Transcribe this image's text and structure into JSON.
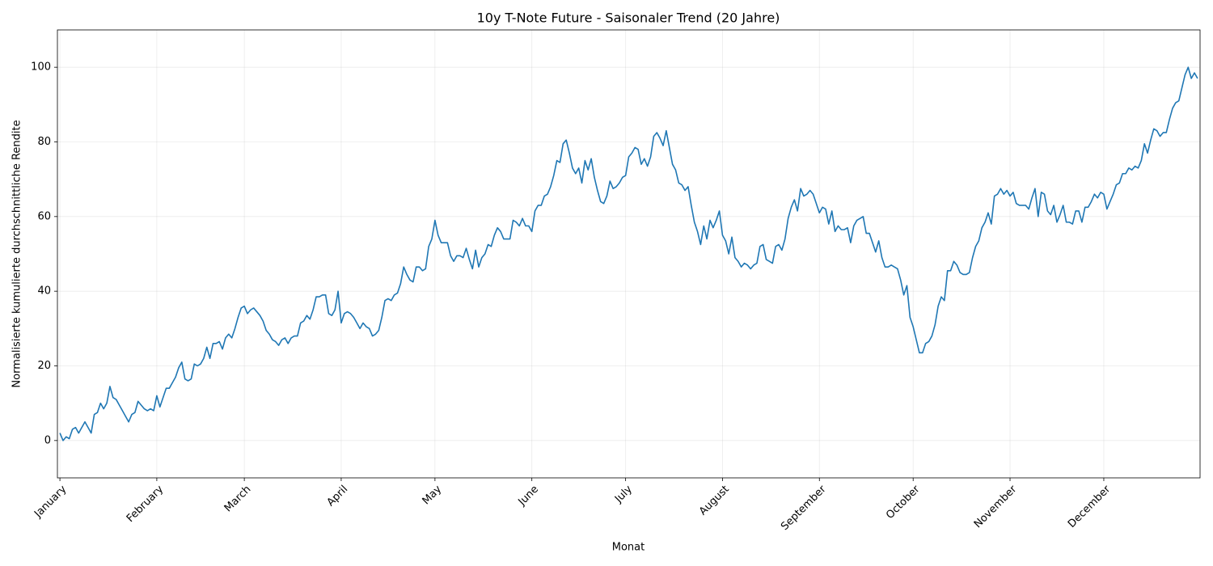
{
  "chart_data": {
    "type": "line",
    "title": "10y T-Note Future - Saisonaler Trend (20 Jahre)",
    "x_label": "Monat",
    "y_label": "Normalisierte kumulierte durchschnittliche Rendite",
    "color": "#1f77b4",
    "grid": true,
    "xlim": [
      0.2,
      365.8
    ],
    "ylim": [
      -10,
      110
    ],
    "yticks": [
      0,
      20,
      40,
      60,
      80,
      100
    ],
    "xticks": [
      {
        "value": 1,
        "label": "January"
      },
      {
        "value": 32,
        "label": "February"
      },
      {
        "value": 60,
        "label": "March"
      },
      {
        "value": 91,
        "label": "April"
      },
      {
        "value": 121,
        "label": "May"
      },
      {
        "value": 152,
        "label": "June"
      },
      {
        "value": 182,
        "label": "July"
      },
      {
        "value": 213,
        "label": "August"
      },
      {
        "value": 244,
        "label": "September"
      },
      {
        "value": 274,
        "label": "October"
      },
      {
        "value": 305,
        "label": "November"
      },
      {
        "value": 335,
        "label": "December"
      }
    ],
    "x": [
      1,
      2,
      3,
      4,
      5,
      6,
      7,
      8,
      9,
      10,
      11,
      12,
      13,
      14,
      15,
      16,
      17,
      18,
      19,
      20,
      21,
      22,
      23,
      24,
      25,
      26,
      27,
      28,
      29,
      30,
      31,
      32,
      33,
      34,
      35,
      36,
      37,
      38,
      39,
      40,
      41,
      42,
      43,
      44,
      45,
      46,
      47,
      48,
      49,
      50,
      51,
      52,
      53,
      54,
      55,
      56,
      57,
      58,
      59,
      60,
      61,
      62,
      63,
      64,
      65,
      66,
      67,
      68,
      69,
      70,
      71,
      72,
      73,
      74,
      75,
      76,
      77,
      78,
      79,
      80,
      81,
      82,
      83,
      84,
      85,
      86,
      87,
      88,
      89,
      90,
      91,
      92,
      93,
      94,
      95,
      96,
      97,
      98,
      99,
      100,
      101,
      102,
      103,
      104,
      105,
      106,
      107,
      108,
      109,
      110,
      111,
      112,
      113,
      114,
      115,
      116,
      117,
      118,
      119,
      120,
      121,
      122,
      123,
      124,
      125,
      126,
      127,
      128,
      129,
      130,
      131,
      132,
      133,
      134,
      135,
      136,
      137,
      138,
      139,
      140,
      141,
      142,
      143,
      144,
      145,
      146,
      147,
      148,
      149,
      150,
      151,
      152,
      153,
      154,
      155,
      156,
      157,
      158,
      159,
      160,
      161,
      162,
      163,
      164,
      165,
      166,
      167,
      168,
      169,
      170,
      171,
      172,
      173,
      174,
      175,
      176,
      177,
      178,
      179,
      180,
      181,
      182,
      183,
      184,
      185,
      186,
      187,
      188,
      189,
      190,
      191,
      192,
      193,
      194,
      195,
      196,
      197,
      198,
      199,
      200,
      201,
      202,
      203,
      204,
      205,
      206,
      207,
      208,
      209,
      210,
      211,
      212,
      213,
      214,
      215,
      216,
      217,
      218,
      219,
      220,
      221,
      222,
      223,
      224,
      225,
      226,
      227,
      228,
      229,
      230,
      231,
      232,
      233,
      234,
      235,
      236,
      237,
      238,
      239,
      240,
      241,
      242,
      243,
      244,
      245,
      246,
      247,
      248,
      249,
      250,
      251,
      252,
      253,
      254,
      255,
      256,
      257,
      258,
      259,
      260,
      261,
      262,
      263,
      264,
      265,
      266,
      267,
      268,
      269,
      270,
      271,
      272,
      273,
      274,
      275,
      276,
      277,
      278,
      279,
      280,
      281,
      282,
      283,
      284,
      285,
      286,
      287,
      288,
      289,
      290,
      291,
      292,
      293,
      294,
      295,
      296,
      297,
      298,
      299,
      300,
      301,
      302,
      303,
      304,
      305,
      306,
      307,
      308,
      309,
      310,
      311,
      312,
      313,
      314,
      315,
      316,
      317,
      318,
      319,
      320,
      321,
      322,
      323,
      324,
      325,
      326,
      327,
      328,
      329,
      330,
      331,
      332,
      333,
      334,
      335,
      336,
      337,
      338,
      339,
      340,
      341,
      342,
      343,
      344,
      345,
      346,
      347,
      348,
      349,
      350,
      351,
      352,
      353,
      354,
      355,
      356,
      357,
      358,
      359,
      360,
      361,
      362,
      363,
      364,
      365
    ],
    "values": [
      2,
      0,
      1,
      0.5,
      3,
      3.5,
      2,
      3.5,
      5,
      3.5,
      2,
      7,
      7.5,
      10,
      8.5,
      10,
      14.5,
      11.5,
      11,
      9.5,
      8,
      6.5,
      5,
      7,
      7.5,
      10.5,
      9.5,
      8.5,
      8,
      8.5,
      8,
      12,
      9,
      11.5,
      14,
      14,
      15.5,
      17,
      19.5,
      21,
      16.5,
      16,
      16.5,
      20.5,
      20,
      20.5,
      22,
      25,
      22,
      26,
      26,
      26.5,
      24.5,
      27.5,
      28.5,
      27.5,
      30,
      33,
      35.5,
      36,
      34,
      35,
      35.5,
      34.5,
      33.5,
      32,
      29.5,
      28.5,
      27,
      26.5,
      25.5,
      27,
      27.5,
      26,
      27.5,
      28,
      28,
      31.5,
      32,
      33.5,
      32.5,
      35,
      38.5,
      38.5,
      39,
      39,
      34,
      33.5,
      35,
      40,
      31.5,
      34,
      34.5,
      34,
      33,
      31.5,
      30,
      31.5,
      30.5,
      30,
      28,
      28.5,
      29.5,
      33,
      37.5,
      38,
      37.5,
      39,
      39.5,
      42,
      46.5,
      44.5,
      43,
      42.5,
      46.5,
      46.5,
      45.5,
      46,
      52,
      54,
      59,
      55,
      53,
      53,
      53,
      49.5,
      48,
      49.5,
      49.5,
      49,
      51.5,
      48.5,
      46,
      51,
      46.5,
      49,
      50,
      52.5,
      52,
      55,
      57,
      56,
      54,
      54,
      54,
      59,
      58.5,
      57.5,
      59.5,
      57.5,
      57.5,
      56,
      61.5,
      63,
      63,
      65.5,
      66,
      68,
      71,
      75,
      74.5,
      79.5,
      80.5,
      77,
      73,
      71.5,
      73,
      69,
      75,
      72.5,
      75.5,
      70.5,
      67,
      64,
      63.5,
      65.5,
      69.5,
      67.5,
      68,
      69,
      70.5,
      71,
      76,
      77,
      78.5,
      78,
      74,
      75.5,
      73.5,
      76,
      81.5,
      82.5,
      81,
      79,
      83,
      78.5,
      74,
      72.5,
      69,
      68.5,
      67,
      68,
      63,
      58.5,
      56,
      52.5,
      57.5,
      54,
      59,
      57,
      59,
      61.5,
      55,
      53.5,
      50,
      54.5,
      49,
      48,
      46.5,
      47.5,
      47,
      46,
      47,
      47.5,
      52,
      52.5,
      48.5,
      48,
      47.5,
      52,
      52.5,
      51,
      54,
      59.5,
      62.5,
      64.5,
      61.5,
      67.5,
      65.5,
      66,
      67,
      66,
      63.5,
      61,
      62.5,
      62,
      58,
      61.5,
      56,
      57.5,
      56.5,
      56.5,
      57,
      53,
      57.5,
      59,
      59.5,
      60,
      55.5,
      55.5,
      53,
      50.5,
      53.5,
      49,
      46.5,
      46.5,
      47,
      46.5,
      46,
      43,
      39,
      41.5,
      33,
      30.5,
      27,
      23.5,
      23.5,
      26,
      26.5,
      28,
      31,
      36,
      38.5,
      37.5,
      45.5,
      45.5,
      48,
      47,
      45,
      44.5,
      44.5,
      45,
      49,
      52,
      53.5,
      57,
      58.5,
      61,
      58,
      65.5,
      66,
      67.5,
      66,
      67,
      65.5,
      66.5,
      63.5,
      63,
      63,
      63,
      62,
      65,
      67.5,
      60,
      66.5,
      66,
      61.5,
      60.5,
      63,
      58.5,
      60.5,
      63,
      58.5,
      58.5,
      58,
      61.5,
      61.5,
      58.5,
      62.5,
      62.5,
      64,
      66,
      65,
      66.5,
      66,
      62,
      64,
      66,
      68.5,
      69,
      71.5,
      71.5,
      73,
      72.5,
      73.5,
      73,
      75,
      79.5,
      77,
      80.5,
      83.5,
      83,
      81.5,
      82.5,
      82.5,
      86,
      89,
      90.5,
      91,
      94.5,
      98,
      100,
      97,
      98.5,
      97
    ]
  }
}
